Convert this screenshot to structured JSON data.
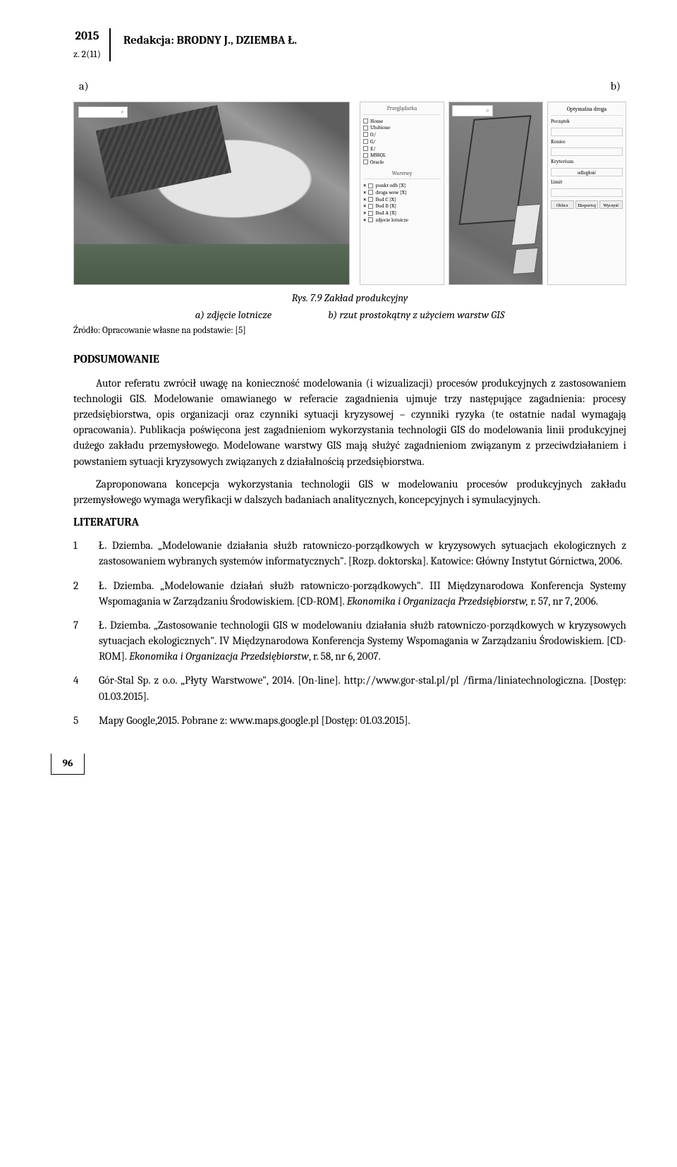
{
  "header": {
    "year": "2015",
    "issue": "z. 2(11)",
    "editors": "Redakcja: BRODNY J., DZIEMBA Ł."
  },
  "ab": {
    "a": "a)",
    "b": "b)"
  },
  "figA": {
    "search_icon": "⌕"
  },
  "figB": {
    "layers_title": "Przeglądarka",
    "layers": [
      "Home",
      "Ulubione",
      "O/",
      "G/",
      "E/",
      "MSSQL",
      "Oracle"
    ],
    "warstwy_title": "Warstwy",
    "warstwy": [
      "punkt odb [X]",
      "droga wew [X]",
      "Bud C [X]",
      "Bud B [X]",
      "Bud A [X]",
      "zdjecie lotnicze"
    ],
    "route_title": "Optymalna droga",
    "route_labels": {
      "start": "Początek",
      "end": "Koniec",
      "crit": "Kryterium",
      "crit_val": "odległość",
      "limit": "Limit"
    },
    "route_buttons": [
      "Oblicz",
      "Eksportuj",
      "Wyczyść"
    ]
  },
  "figure": {
    "caption": "Rys. 7.9 Zakład produkcyjny",
    "sub_a": "a) zdjęcie lotnicze",
    "sub_b": "b) rzut prostokątny z użyciem warstw GIS",
    "source": "Źródło: Opracowanie własne na podstawie: [5]"
  },
  "section_summary": "PODSUMOWANIE",
  "para1": "Autor referatu zwrócił uwagę na konieczność modelowania (i wizualizacji) procesów produkcyjnych z zastosowaniem technologii GIS. Modelowanie omawianego w referacie zagadnienia ujmuje trzy następujące zagadnienia: procesy przedsiębiorstwa, opis organizacji oraz czynniki sytuacji kryzysowej – czynniki ryzyka (te ostatnie nadal wymagają opracowania). Publikacja poświęcona jest zagadnieniom wykorzystania technologii GIS do modelowania linii produkcyjnej dużego zakładu przemysłowego. Modelowane warstwy GIS mają służyć zagadnieniom związanym z przeciwdziałaniem i powstaniem sytuacji kryzysowych związanych z działalnością przedsiębiorstwa.",
  "para2": "Zaproponowana koncepcja wykorzystania technologii GIS w modelowaniu procesów produkcyjnych zakładu przemysłowego wymaga weryfikacji w dalszych badaniach analitycznych, koncepcyjnych i symulacyjnych.",
  "section_lit": "LITERATURA",
  "lit": [
    {
      "n": "1",
      "html": "Ł. Dziemba. „Modelowanie działania służb ratowniczo-porządkowych w kryzysowych sytuacjach ekologicznych z zastosowaniem wybranych systemów informatycznych\". [Rozp. doktorska]. Katowice: Główny Instytut Górnictwa, 2006."
    },
    {
      "n": "2",
      "html": "Ł. Dziemba. „Modelowanie działań służb ratowniczo-porządkowych\". III Międzynarodowa Konferencja Systemy Wspomagania w Zarządzaniu Środowiskiem. [CD-ROM]. <em>Ekonomika i Organizacja Przedsiębiorstw,</em> r. 57, nr 7, 2006."
    },
    {
      "n": "7",
      "html": "Ł. Dziemba. „Zastosowanie technologii GIS w modelowaniu działania służb ratowniczo-porządkowych w kryzysowych sytuacjach ekologicznych\". IV Międzynarodowa Konferencja Systemy Wspomagania w Zarządzaniu Środowiskiem. [CD-ROM]. <em>Ekonomika i Organizacja Przedsiębiorstw</em>, r. 58, nr 6, 2007."
    },
    {
      "n": "4",
      "html": "Gór-Stal Sp. z o.o. „Płyty Warstwowe\", 2014. [On-line]. http://www.gor-stal.pl/pl /firma/liniatechnologiczna. [Dostęp: 01.03.2015]."
    },
    {
      "n": "5",
      "html": "Mapy Google,2015. Pobrane z: www.maps.google.pl [Dostęp: 01.03.2015]."
    }
  ],
  "page_number": "96"
}
